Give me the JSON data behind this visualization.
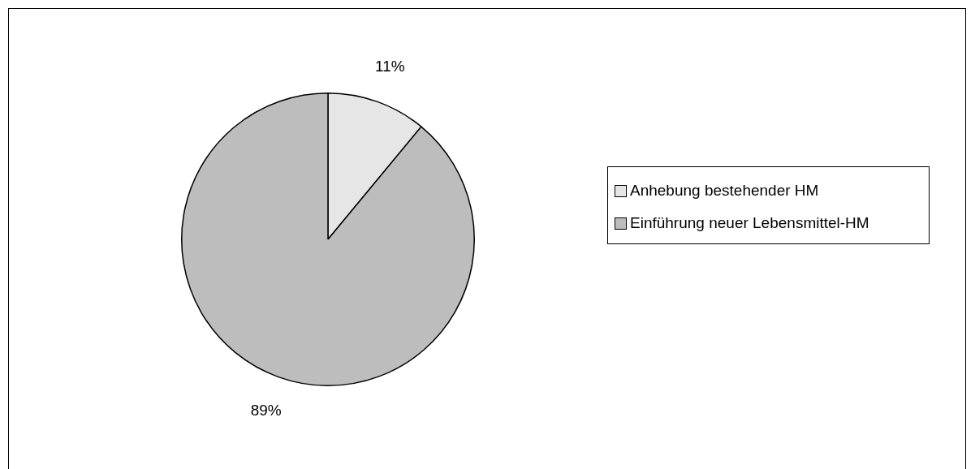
{
  "chart_data": {
    "type": "pie",
    "categories": [
      "Anhebung bestehender HM",
      "Einführung neuer Lebensmittel-HM"
    ],
    "values": [
      11,
      89
    ],
    "colors": [
      "#e6e6e6",
      "#bdbdbd"
    ],
    "value_labels": [
      "11%",
      "89%"
    ],
    "legend": "right"
  }
}
